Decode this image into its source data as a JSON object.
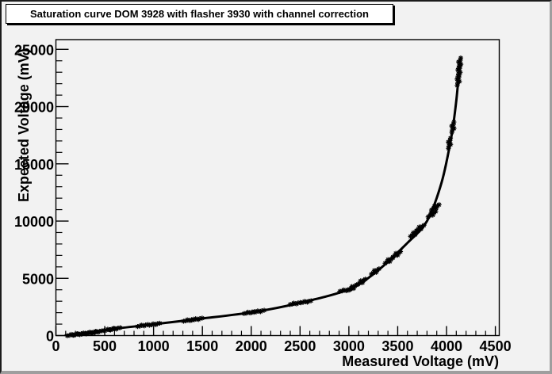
{
  "window": {
    "background": "#f2f2f2",
    "border_dark": "#1c1c1c",
    "border_gray": "#9e9e9e"
  },
  "title_box": {
    "text": "Saturation curve DOM 3928 with flasher 3930 with channel correction",
    "background": "#ffffff",
    "border_color": "#000000"
  },
  "chart_data": {
    "type": "scatter",
    "title": "Saturation curve DOM 3928 with flasher 3930 with channel correction",
    "xlabel": "Measured Voltage (mV)",
    "ylabel": "Expected Voltage (mV)",
    "xlim": [
      0,
      4540
    ],
    "ylim": [
      0,
      25850
    ],
    "grid": false,
    "legend": "none",
    "axis_color": "#000000",
    "marker_color": "#000000",
    "line_color": "#000000",
    "x_ticks": [
      0,
      500,
      1000,
      1500,
      2000,
      2500,
      3000,
      3500,
      4000,
      4500
    ],
    "x_tick_labels": [
      "0",
      "500",
      "1000",
      "1500",
      "2000",
      "2500",
      "3000",
      "3500",
      "4000",
      "4500"
    ],
    "y_ticks": [
      0,
      5000,
      10000,
      15000,
      20000,
      25000
    ],
    "y_tick_labels": [
      "0",
      "5000",
      "10000",
      "15000",
      "20000",
      "25000"
    ],
    "x_minor_step": 100,
    "y_minor_step": 1000,
    "series": [
      {
        "name": "measured data points (marker clusters)",
        "type": "scatter",
        "points": [
          [
            170,
            70
          ],
          [
            230,
            120
          ],
          [
            295,
            175
          ],
          [
            360,
            260
          ],
          [
            420,
            330
          ],
          [
            545,
            520
          ],
          [
            605,
            600
          ],
          [
            890,
            880
          ],
          [
            1010,
            990
          ],
          [
            1360,
            1340
          ],
          [
            1445,
            1435
          ],
          [
            1980,
            2010
          ],
          [
            2080,
            2120
          ],
          [
            2450,
            2800
          ],
          [
            2560,
            2950
          ],
          [
            2960,
            3950
          ],
          [
            3040,
            4200
          ],
          [
            3130,
            4700
          ],
          [
            3270,
            5600
          ],
          [
            3410,
            6550
          ],
          [
            3490,
            7100
          ],
          [
            3670,
            8900
          ],
          [
            3730,
            9400
          ],
          [
            3850,
            10600
          ],
          [
            3885,
            11200
          ],
          [
            4030,
            16800
          ],
          [
            4065,
            18200
          ],
          [
            4120,
            22300
          ],
          [
            4128,
            23100
          ],
          [
            4135,
            23800
          ]
        ]
      },
      {
        "name": "saturation fit curve",
        "type": "line",
        "points": [
          [
            100,
            30
          ],
          [
            300,
            180
          ],
          [
            580,
            570
          ],
          [
            1000,
            980
          ],
          [
            1450,
            1440
          ],
          [
            2030,
            2060
          ],
          [
            2510,
            2880
          ],
          [
            3000,
            4050
          ],
          [
            3300,
            5700
          ],
          [
            3600,
            8100
          ],
          [
            3800,
            10000
          ],
          [
            3950,
            13400
          ],
          [
            4050,
            17400
          ],
          [
            4100,
            20500
          ],
          [
            4133,
            23600
          ]
        ]
      }
    ]
  }
}
